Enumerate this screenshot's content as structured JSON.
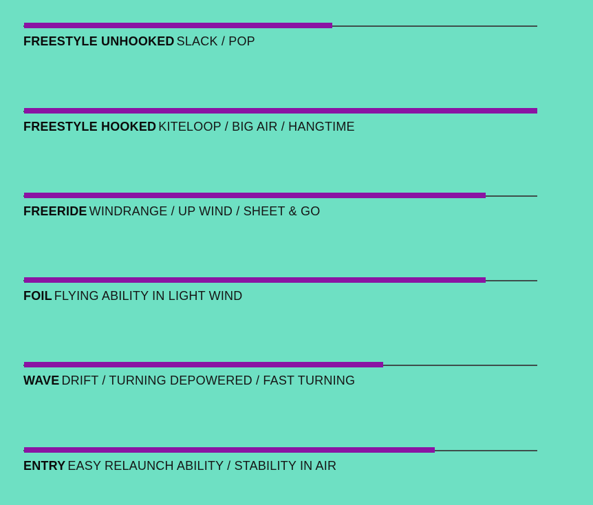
{
  "colors": {
    "background": "#6ee0c3",
    "fill": "#8a14a3",
    "track": "#3e4e4b"
  },
  "ratings": [
    {
      "name": "FREESTYLE UNHOOKED",
      "desc": "SLACK / POP",
      "level": 0.6
    },
    {
      "name": "FREESTYLE HOOKED",
      "desc": "KITELOOP / BIG AIR / HANGTIME",
      "level": 1.0
    },
    {
      "name": "FREERIDE",
      "desc": "WINDRANGE / UP WIND / SHEET & GO",
      "level": 0.9
    },
    {
      "name": "FOIL",
      "desc": "FLYING ABILITY IN LIGHT WIND",
      "level": 0.9
    },
    {
      "name": "WAVE",
      "desc": "DRIFT / TURNING DEPOWERED / FAST TURNING",
      "level": 0.7
    },
    {
      "name": "ENTRY",
      "desc": "EASY RELAUNCH ABILITY / STABILITY IN AIR",
      "level": 0.8
    }
  ]
}
